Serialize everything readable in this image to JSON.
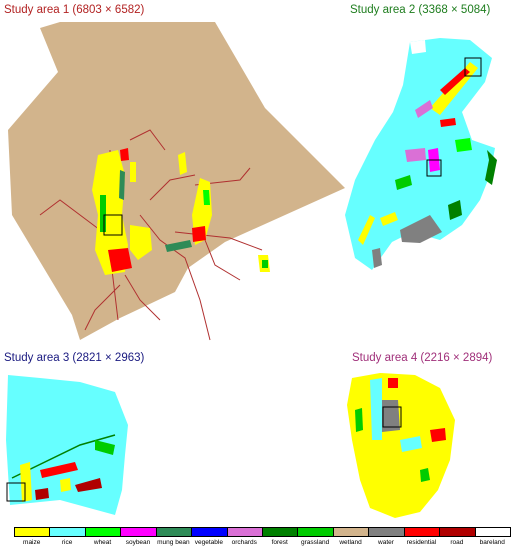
{
  "titles": [
    {
      "label": "Study area 1 (6803 × 6582)",
      "color": "#b22222"
    },
    {
      "label": "Study area 2 (3368 × 5084)",
      "color": "#1e7d1e"
    },
    {
      "label": "Study area 3 (2821 × 2963)",
      "color": "#1a1a80"
    },
    {
      "label": "Study area 4 (2216 × 2894)",
      "color": "#a0307a"
    }
  ],
  "legend": [
    {
      "label": "maize",
      "color": "#ffff00"
    },
    {
      "label": "rice",
      "color": "#66ffff"
    },
    {
      "label": "wheat",
      "color": "#00ff00"
    },
    {
      "label": "soybean",
      "color": "#ff00ff"
    },
    {
      "label": "mung bean",
      "color": "#2e8b57"
    },
    {
      "label": "vegetable",
      "color": "#0000ff"
    },
    {
      "label": "orchards",
      "color": "#da70d6"
    },
    {
      "label": "forest",
      "color": "#008000"
    },
    {
      "label": "grassland",
      "color": "#00cc00"
    },
    {
      "label": "wetland",
      "color": "#d2b48c"
    },
    {
      "label": "water",
      "color": "#808080"
    },
    {
      "label": "residential",
      "color": "#ff0000"
    },
    {
      "label": "road",
      "color": "#b00000"
    },
    {
      "label": "bareland",
      "color": "#ffffff"
    }
  ]
}
